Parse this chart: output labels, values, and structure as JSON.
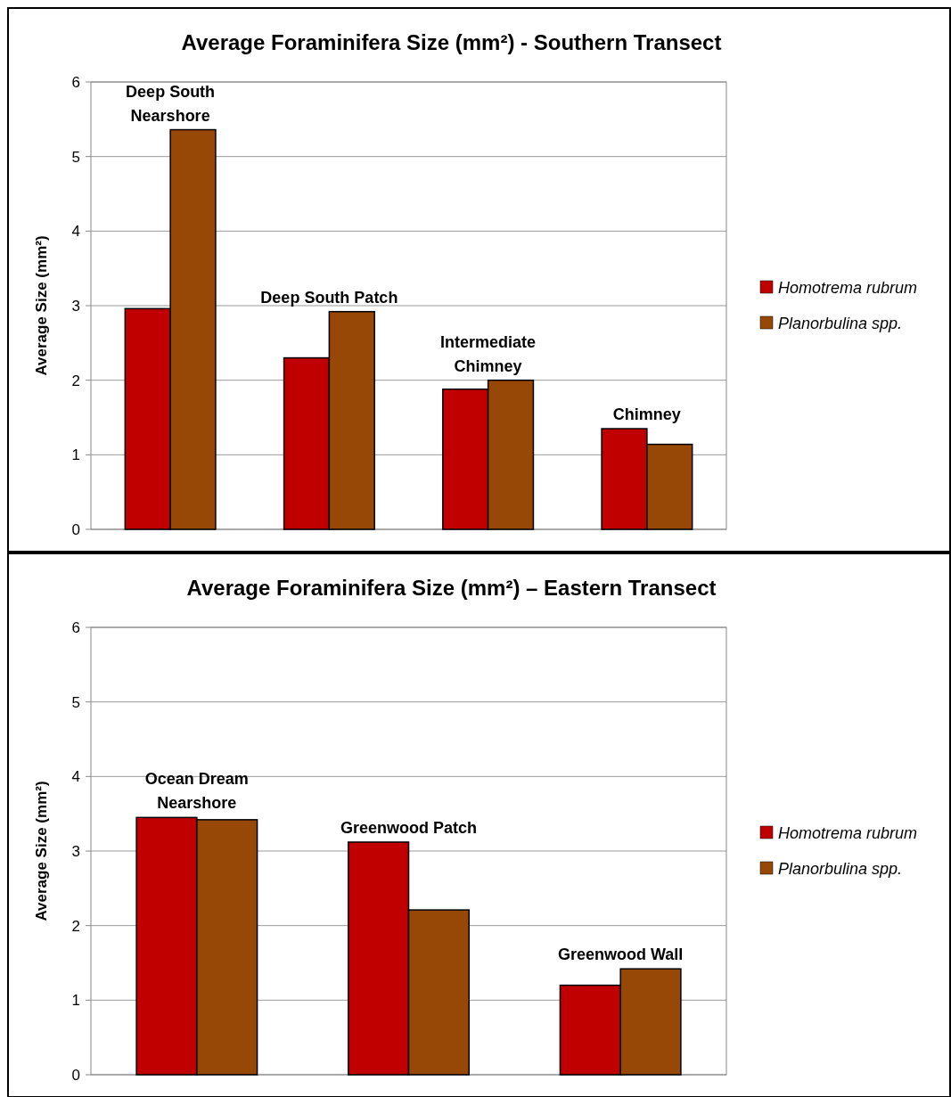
{
  "chart_data": [
    {
      "type": "bar",
      "title": "Average Foraminifera Size (mm²) - Southern Transect",
      "ylabel": "Average Size (mm²)",
      "categories": [
        "Deep South Nearshore",
        "Deep South Patch",
        "Intermediate Chimney",
        "Chimney"
      ],
      "series": [
        {
          "name": "Homotrema rubrum",
          "color": "#c00000",
          "values": [
            2.96,
            2.3,
            1.88,
            1.35
          ]
        },
        {
          "name": "Planorbulina spp.",
          "color": "#974706",
          "values": [
            5.36,
            2.92,
            2.0,
            1.14
          ]
        }
      ],
      "ylim": [
        0,
        6
      ],
      "yticks": [
        0,
        1,
        2,
        3,
        4,
        5,
        6
      ],
      "grid": "y",
      "legend": "right"
    },
    {
      "type": "bar",
      "title": "Average Foraminifera Size (mm²) – Eastern Transect",
      "ylabel": "Average Size (mm²)",
      "categories": [
        "Ocean Dream Nearshore",
        "Greenwood Patch",
        "Greenwood Wall"
      ],
      "series": [
        {
          "name": "Homotrema rubrum",
          "color": "#c00000",
          "values": [
            3.45,
            3.12,
            1.2
          ]
        },
        {
          "name": "Planorbulina spp.",
          "color": "#974706",
          "values": [
            3.42,
            2.21,
            1.42
          ]
        }
      ],
      "ylim": [
        0,
        6
      ],
      "yticks": [
        0,
        1,
        2,
        3,
        4,
        5,
        6
      ],
      "grid": "y",
      "legend": "right"
    }
  ]
}
